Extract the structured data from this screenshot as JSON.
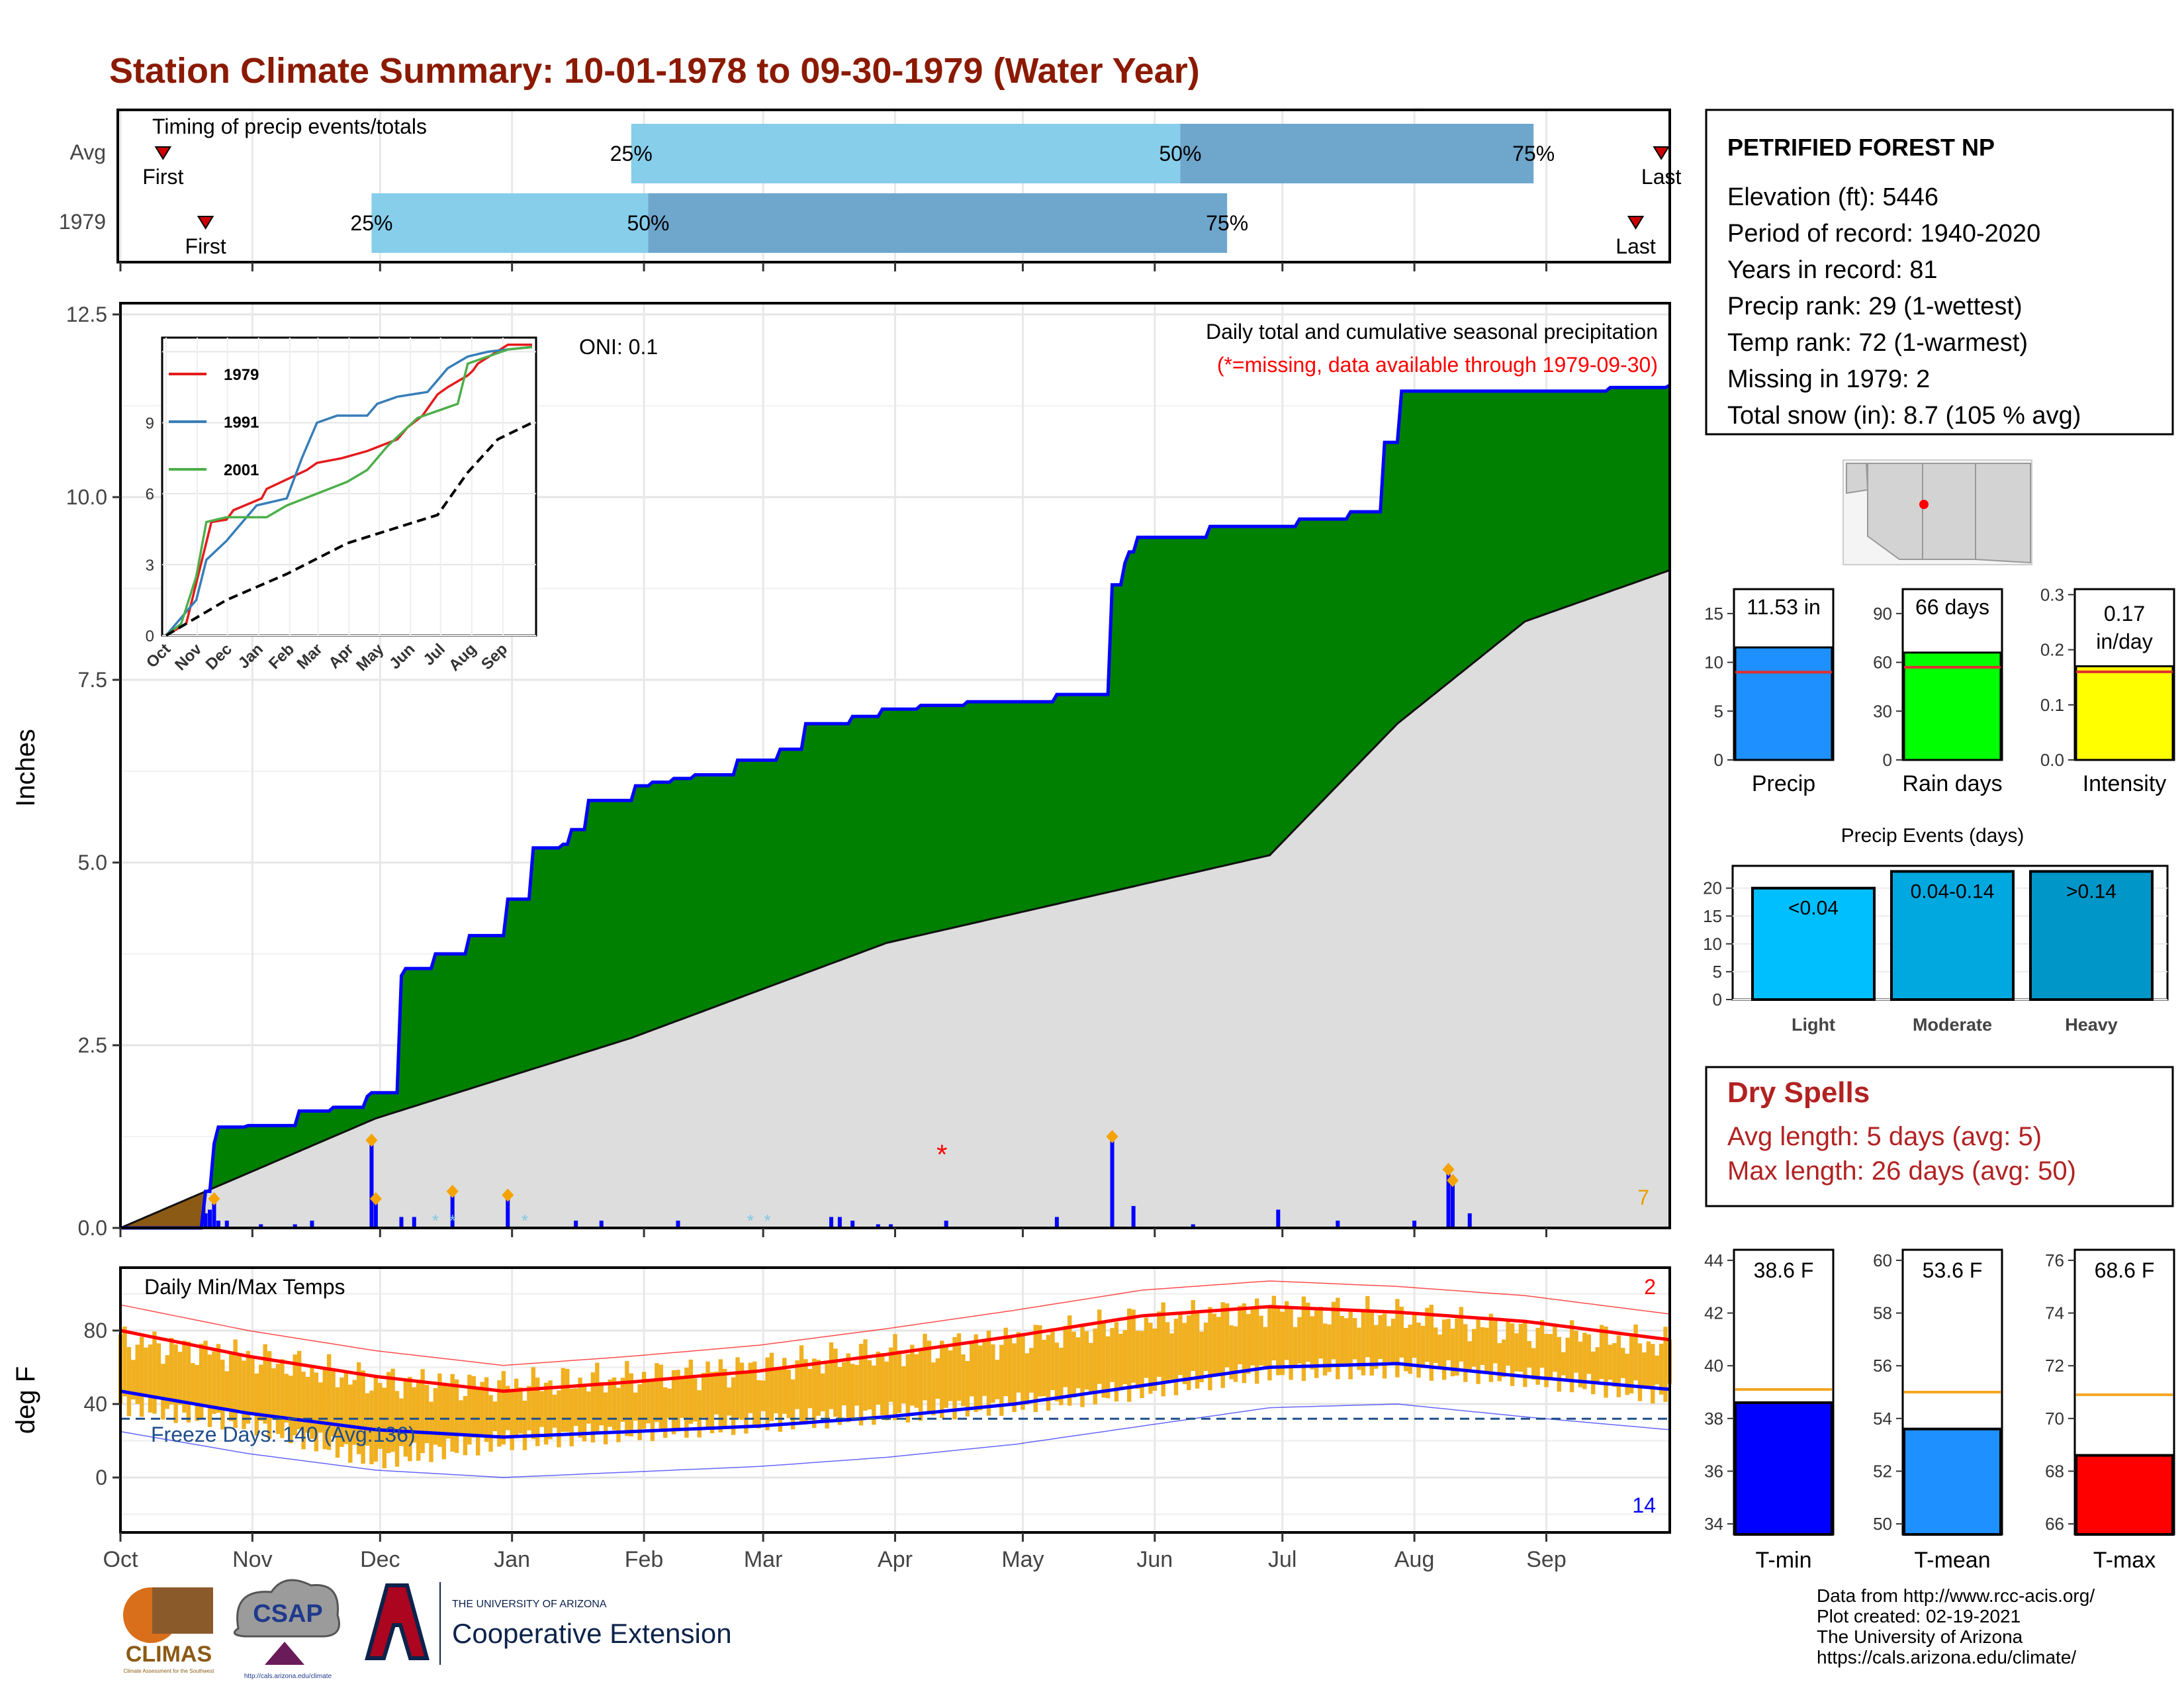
{
  "title": "Station Climate Summary: 10-01-1978 to 09-30-1979 (Water Year)",
  "timing": {
    "label": "Timing of precip events/totals",
    "rows": [
      {
        "name": "Avg",
        "first_label": "First",
        "last_label": "Last",
        "p25_label": "25%",
        "p50_label": "50%",
        "p75_label": "75%",
        "first_day": 10,
        "p25_day": 120,
        "p50_day": 249,
        "p75_day": 332,
        "last_day": 362
      },
      {
        "name": "1979",
        "first_label": "First",
        "last_label": "Last",
        "p25_label": "25%",
        "p50_label": "50%",
        "p75_label": "75%",
        "first_day": 20,
        "p25_day": 59,
        "p50_day": 124,
        "p75_day": 260,
        "last_day": 356
      }
    ],
    "colors": {
      "light": "#87ceeb",
      "dark": "#6fa6cc",
      "marker": "#cc0000"
    }
  },
  "precip_panel": {
    "ylabel": "Inches",
    "yticks": [
      "0.0",
      "2.5",
      "5.0",
      "7.5",
      "10.0",
      "12.5"
    ],
    "oni": "ONI: 0.1",
    "header": "Daily total and cumulative seasonal precipitation",
    "missing_note": "(*=missing, data available through 1979-09-30)",
    "count_label": "7",
    "colors": {
      "above": "#008000",
      "avg": "#dddddd",
      "line": "#0000ff",
      "below": "#8b5a14",
      "bar": "#0000ff",
      "diamond": "#f4a300",
      "missing": "#ff0000",
      "snow": "#7ec8e3"
    }
  },
  "inset": {
    "series": [
      {
        "name": "1979",
        "color": "#e41a1c"
      },
      {
        "name": "1991",
        "color": "#377eb8"
      },
      {
        "name": "2001",
        "color": "#4daf4a"
      }
    ],
    "yticks": [
      "0",
      "3",
      "6",
      "9"
    ],
    "months": [
      "Oct",
      "Nov",
      "Dec",
      "Jan",
      "Feb",
      "Mar",
      "Apr",
      "May",
      "Jun",
      "Jul",
      "Aug",
      "Sep"
    ]
  },
  "temp_panel": {
    "ylabel": "deg F",
    "title": "Daily Min/Max Temps",
    "yticks": [
      "0",
      "40",
      "80"
    ],
    "freeze_label": "Freeze Days: 140 (Avg:136)",
    "record_high_count": "2",
    "record_low_count": "14",
    "months": [
      "Oct",
      "Nov",
      "Dec",
      "Jan",
      "Feb",
      "Mar",
      "Apr",
      "May",
      "Jun",
      "Jul",
      "Aug",
      "Sep"
    ],
    "colors": {
      "bar": "#f0b020",
      "max": "#ff0000",
      "min": "#0000ff",
      "freeze": "#1f4e8c"
    }
  },
  "station": {
    "name": "PETRIFIED FOREST NP",
    "lines": [
      "Elevation (ft): 5446",
      "Period of record: 1940-2020",
      "Years in record: 81",
      "Precip rank: 29 (1-wettest)",
      "Temp rank: 72 (1-warmest)",
      "Missing in 1979: 2",
      "Total snow (in): 8.7 (105 % avg)"
    ]
  },
  "summary_bars": [
    {
      "label": "Precip",
      "value_text": "11.53 in",
      "value": 11.53,
      "avg": 9.0,
      "ymax": 17.5,
      "ticks": [
        "0",
        "5",
        "10",
        "15"
      ],
      "tickvals": [
        0,
        5,
        10,
        15
      ],
      "color": "#1e90ff"
    },
    {
      "label": "Rain days",
      "value_text": "66 days",
      "value": 66,
      "avg": 57,
      "ymax": 105,
      "ticks": [
        "0",
        "30",
        "60",
        "90"
      ],
      "tickvals": [
        0,
        30,
        60,
        90
      ],
      "color": "#00ff00"
    },
    {
      "label": "Intensity",
      "value_text": "0.17 in/day",
      "value": 0.17,
      "avg": 0.16,
      "ymax": 0.31,
      "ticks": [
        "0.0",
        "0.1",
        "0.2",
        "0.3"
      ],
      "tickvals": [
        0,
        0.1,
        0.2,
        0.3
      ],
      "color": "#ffff00"
    }
  ],
  "events": {
    "title": "Precip Events (days)",
    "yticks": [
      "0",
      "5",
      "10",
      "15",
      "20"
    ],
    "bars": [
      {
        "name": "Light",
        "range": "<0.04",
        "value": 20,
        "color": "#00bfff"
      },
      {
        "name": "Moderate",
        "range": "0.04-0.14",
        "value": 23,
        "color": "#00a8e0"
      },
      {
        "name": "Heavy",
        "range": ">0.14",
        "value": 23,
        "color": "#0096c7"
      }
    ]
  },
  "dry_spells": {
    "title": "Dry Spells",
    "avg_length": "Avg length: 5 days (avg: 5)",
    "max_length": "Max length: 26 days (avg: 50)"
  },
  "temp_bars": [
    {
      "label": "T-min",
      "value_text": "38.6 F",
      "value": 38.6,
      "avg": 39.1,
      "ymin": 33.6,
      "ymax": 44.4,
      "ticks": [
        "34",
        "36",
        "38",
        "40",
        "42",
        "44"
      ],
      "tickvals": [
        34,
        36,
        38,
        40,
        42,
        44
      ],
      "color": "#0000ff"
    },
    {
      "label": "T-mean",
      "value_text": "53.6 F",
      "value": 53.6,
      "avg": 55.0,
      "ymin": 49.6,
      "ymax": 60.4,
      "ticks": [
        "50",
        "52",
        "54",
        "56",
        "58",
        "60"
      ],
      "tickvals": [
        50,
        52,
        54,
        56,
        58,
        60
      ],
      "color": "#1e90ff"
    },
    {
      "label": "T-max",
      "value_text": "68.6 F",
      "value": 68.6,
      "avg": 70.9,
      "ymin": 65.6,
      "ymax": 76.4,
      "ticks": [
        "66",
        "68",
        "70",
        "72",
        "74",
        "76"
      ],
      "tickvals": [
        66,
        68,
        70,
        72,
        74,
        76
      ],
      "color": "#ff0000"
    }
  ],
  "footer": {
    "lines": [
      "Data from http://www.rcc-acis.org/",
      "Plot created: 02-19-2021",
      "The University of Arizona",
      "https://cals.arizona.edu/climate/"
    ],
    "logo_climas": "CLIMAS",
    "logo_climas_sub": "Climate Assessment for the Southwest",
    "logo_csap": "CSAP",
    "logo_csap_url": "http://cals.arizona.edu/climate",
    "ua_small": "THE UNIVERSITY OF ARIZONA",
    "ua_big": "Cooperative Extension"
  },
  "chart_data": [
    {
      "type": "area",
      "title": "Daily total and cumulative seasonal precipitation",
      "ylabel": "Inches",
      "ylim": [
        0,
        12.5
      ],
      "x_units": "day of water year (0 = Oct 1, 1978)",
      "cumulative_1979": {
        "x": [
          0,
          20,
          22,
          23,
          30,
          42,
          50,
          58,
          59,
          66,
          67,
          74,
          82,
          91,
          97,
          104,
          106,
          110,
          121,
          125,
          130,
          135,
          145,
          155,
          161,
          172,
          179,
          188,
          199,
          220,
          233,
          236,
          237,
          239,
          256,
          277,
          289,
          297,
          301,
          350,
          364
        ],
        "y": [
          0.0,
          0.5,
          1.15,
          1.38,
          1.4,
          1.6,
          1.65,
          1.8,
          1.85,
          3.45,
          3.55,
          3.75,
          4.0,
          4.5,
          5.2,
          5.25,
          5.45,
          5.85,
          6.05,
          6.1,
          6.15,
          6.2,
          6.4,
          6.55,
          6.9,
          7.0,
          7.1,
          7.15,
          7.2,
          7.3,
          8.8,
          9.1,
          9.25,
          9.45,
          9.6,
          9.7,
          9.8,
          10.75,
          11.45,
          11.5,
          11.53
        ]
      },
      "average_cumulative": {
        "x": [
          0,
          60,
          120,
          180,
          240,
          270,
          300,
          330,
          364
        ],
        "y": [
          0.0,
          1.5,
          2.6,
          3.9,
          4.7,
          5.1,
          6.9,
          8.3,
          9.0
        ]
      },
      "daily_precip": {
        "x": [
          20,
          21,
          22,
          23,
          25,
          33,
          41,
          45,
          59,
          60,
          66,
          69,
          78,
          91,
          107,
          113,
          131,
          167,
          169,
          172,
          178,
          181,
          194,
          220,
          233,
          238,
          252,
          272,
          286,
          304,
          312,
          313,
          317
        ],
        "y": [
          0.2,
          0.25,
          0.4,
          0.1,
          0.1,
          0.05,
          0.05,
          0.1,
          1.2,
          0.4,
          0.15,
          0.15,
          0.5,
          0.45,
          0.1,
          0.1,
          0.1,
          0.15,
          0.15,
          0.1,
          0.05,
          0.05,
          0.1,
          0.15,
          1.25,
          0.3,
          0.05,
          0.25,
          0.1,
          0.1,
          0.8,
          0.65,
          0.2
        ]
      },
      "missing_days": [
        193
      ]
    },
    {
      "type": "line",
      "title": "",
      "ylim": [
        0,
        12.5
      ],
      "categories": [
        "Oct",
        "Nov",
        "Dec",
        "Jan",
        "Feb",
        "Mar",
        "Apr",
        "May",
        "Jun",
        "Jul",
        "Aug",
        "Sep"
      ],
      "series": [
        {
          "name": "1979",
          "x": [
            0,
            20,
            45,
            60,
            67,
            95,
            100,
            120,
            140,
            150,
            175,
            200,
            230,
            240,
            255,
            270,
            280,
            300,
            305,
            310,
            340,
            364
          ],
          "y": [
            0,
            0.5,
            4.8,
            4.9,
            5.3,
            5.8,
            6.2,
            6.6,
            7.0,
            7.3,
            7.5,
            7.8,
            8.3,
            8.8,
            9.3,
            10.2,
            10.5,
            11.0,
            11.2,
            11.5,
            12.3,
            12.3
          ]
        },
        {
          "name": "1991",
          "x": [
            0,
            30,
            40,
            60,
            70,
            90,
            120,
            135,
            150,
            170,
            200,
            210,
            230,
            260,
            280,
            300,
            320,
            340,
            364
          ],
          "y": [
            0,
            1.5,
            3.2,
            4.0,
            4.5,
            5.5,
            5.8,
            7.5,
            9.0,
            9.3,
            9.3,
            9.8,
            10.1,
            10.3,
            11.3,
            11.8,
            12.0,
            12.1,
            12.2
          ]
        },
        {
          "name": "2001",
          "x": [
            0,
            15,
            30,
            40,
            60,
            80,
            100,
            120,
            150,
            180,
            200,
            220,
            250,
            270,
            290,
            300,
            320,
            340,
            364
          ],
          "y": [
            0,
            0.5,
            2.5,
            4.8,
            5.0,
            5.0,
            5.0,
            5.5,
            6.0,
            6.5,
            7.0,
            8.0,
            9.2,
            9.5,
            9.8,
            11.5,
            11.8,
            12.1,
            12.2
          ]
        },
        {
          "name": "Average",
          "x": [
            0,
            60,
            120,
            180,
            240,
            270,
            300,
            330,
            364
          ],
          "y": [
            0.0,
            1.5,
            2.6,
            3.9,
            4.7,
            5.1,
            6.9,
            8.3,
            9.0
          ]
        }
      ]
    },
    {
      "type": "bar",
      "title": "Daily Min/Max Temps",
      "ylabel": "deg F",
      "ylim": [
        -25,
        105
      ],
      "x_units": "day of water year",
      "tmax": {
        "x": [
          0,
          30,
          60,
          90,
          120,
          150,
          180,
          210,
          240,
          270,
          300,
          330,
          364
        ],
        "y": [
          74,
          66,
          52,
          50,
          54,
          60,
          68,
          75,
          85,
          92,
          88,
          80,
          72
        ]
      },
      "tmin": {
        "x": [
          0,
          30,
          60,
          90,
          120,
          150,
          180,
          210,
          240,
          270,
          300,
          330,
          364
        ],
        "y": [
          40,
          30,
          10,
          20,
          25,
          30,
          35,
          40,
          48,
          58,
          60,
          55,
          45
        ]
      },
      "normal_max": {
        "x": [
          0,
          30,
          60,
          90,
          120,
          150,
          180,
          210,
          240,
          270,
          300,
          330,
          364
        ],
        "y": [
          80,
          66,
          55,
          47,
          52,
          58,
          67,
          77,
          88,
          93,
          90,
          85,
          75
        ]
      },
      "normal_min": {
        "x": [
          0,
          30,
          60,
          90,
          120,
          150,
          180,
          210,
          240,
          270,
          300,
          330,
          364
        ],
        "y": [
          47,
          35,
          26,
          22,
          25,
          28,
          33,
          40,
          50,
          60,
          62,
          55,
          48
        ]
      },
      "freeze_threshold": 32
    },
    {
      "type": "bar",
      "title": "Precip Events (days)",
      "categories": [
        "Light",
        "Moderate",
        "Heavy"
      ],
      "values": [
        20,
        23,
        23
      ],
      "ylim": [
        0,
        24
      ]
    },
    {
      "type": "bar",
      "categories": [
        "Precip",
        "Rain days",
        "Intensity"
      ],
      "values": [
        11.53,
        66,
        0.17
      ]
    },
    {
      "type": "bar",
      "categories": [
        "T-min",
        "T-mean",
        "T-max"
      ],
      "values": [
        38.6,
        53.6,
        68.6
      ]
    }
  ]
}
